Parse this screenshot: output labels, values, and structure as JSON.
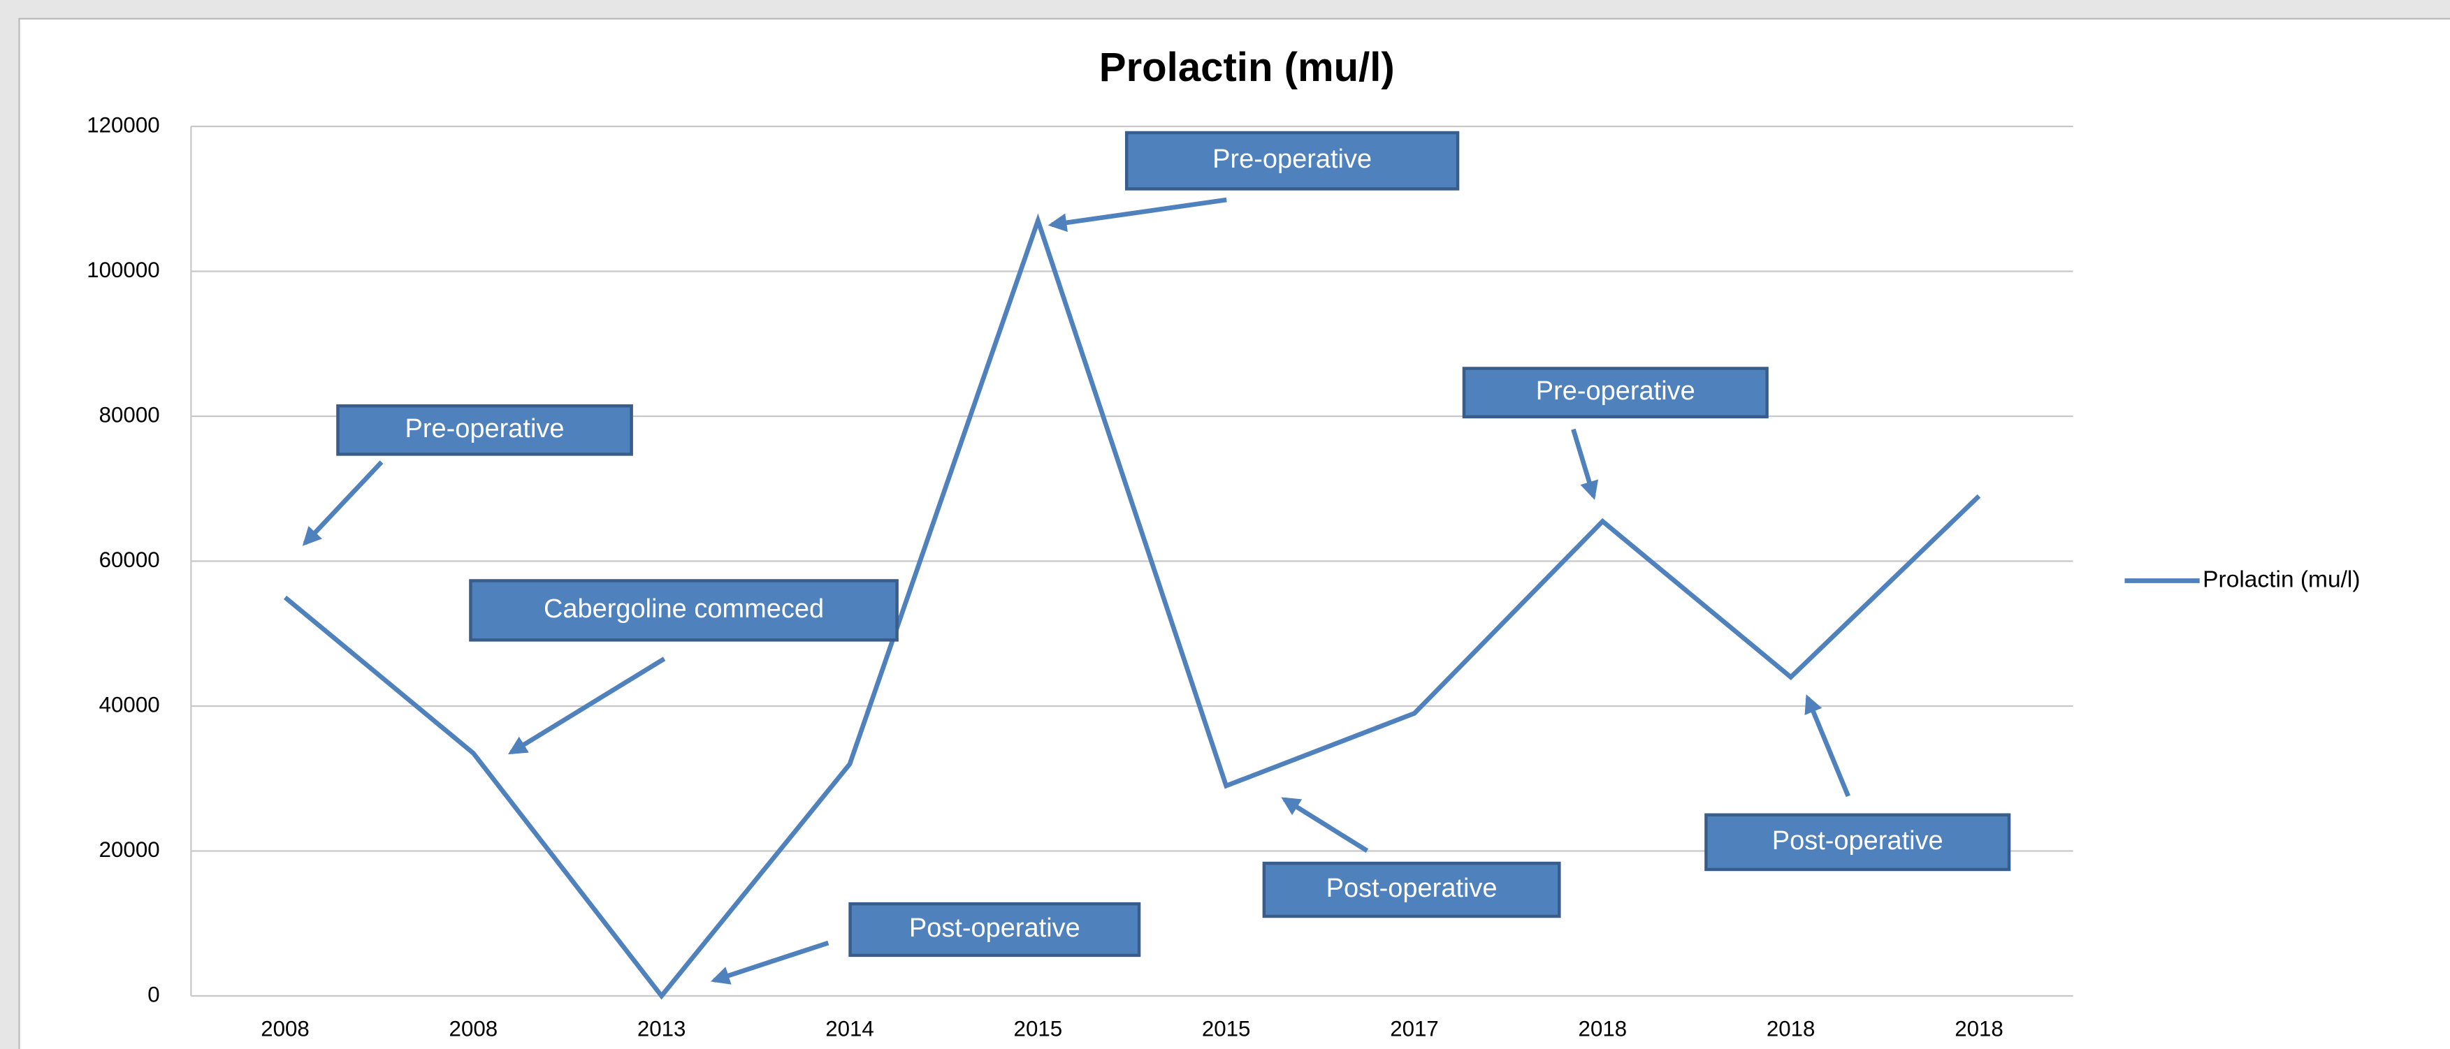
{
  "chart_data": {
    "type": "line",
    "title": "Prolactin (mu/l)",
    "categories": [
      "2008",
      "2008",
      "2013",
      "2014",
      "2015",
      "2015",
      "2017",
      "2018",
      "2018",
      "2018"
    ],
    "series": [
      {
        "name": "Prolactin (mu/l)",
        "color": "#4f81bd",
        "values": [
          55000,
          33500,
          0,
          32000,
          107000,
          29000,
          39000,
          65500,
          44000,
          69000
        ]
      }
    ],
    "ylim": [
      0,
      120000
    ],
    "yticks": [
      0,
      20000,
      40000,
      60000,
      80000,
      100000,
      120000
    ],
    "grid": true,
    "legend": "right",
    "annotations": [
      "Pre-operative",
      "Cabergoline commeced",
      "Post-operative",
      "Pre-operative",
      "Post-operative",
      "Pre-operative",
      "Post-operative"
    ]
  }
}
